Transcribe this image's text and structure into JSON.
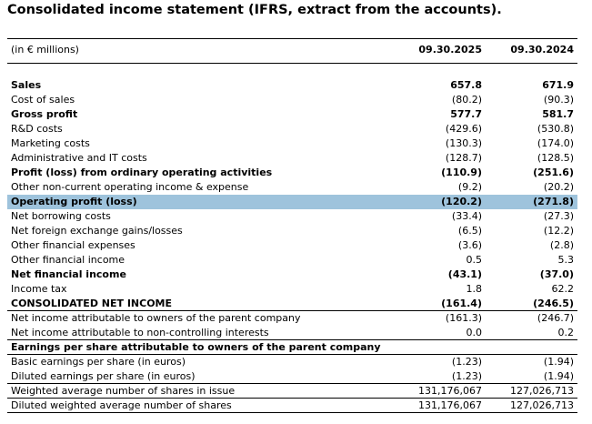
{
  "title": "Consolidated income statement (IFRS, extract from the accounts).",
  "header": {
    "unit": "(in € millions)",
    "col1": "09.30.2025",
    "col2": "09.30.2024"
  },
  "rows": [
    {
      "label": "Sales",
      "v1": "657.8",
      "v2": "671.9"
    },
    {
      "label": "Cost of sales",
      "v1": "(80.2)",
      "v2": "(90.3)"
    },
    {
      "label": "Gross profit",
      "v1": "577.7",
      "v2": "581.7"
    },
    {
      "label": "R&D costs",
      "v1": "(429.6)",
      "v2": "(530.8)"
    },
    {
      "label": "Marketing costs",
      "v1": "(130.3)",
      "v2": "(174.0)"
    },
    {
      "label": "Administrative and IT costs",
      "v1": "(128.7)",
      "v2": "(128.5)"
    },
    {
      "label": "Profit (loss) from ordinary operating activities",
      "v1": "(110.9)",
      "v2": "(251.6)"
    },
    {
      "label": "Other non-current operating income & expense",
      "v1": "(9.2)",
      "v2": "(20.2)"
    },
    {
      "label": "Operating profit (loss)",
      "v1": "(120.2)",
      "v2": "(271.8)"
    },
    {
      "label": "Net borrowing costs",
      "v1": "(33.4)",
      "v2": "(27.3)"
    },
    {
      "label": "Net foreign exchange gains/losses",
      "v1": "(6.5)",
      "v2": "(12.2)"
    },
    {
      "label": "Other financial expenses",
      "v1": "(3.6)",
      "v2": "(2.8)"
    },
    {
      "label": "Other financial income",
      "v1": "0.5",
      "v2": "5.3"
    },
    {
      "label": "Net financial income",
      "v1": "(43.1)",
      "v2": "(37.0)"
    },
    {
      "label": "Income tax",
      "v1": "1.8",
      "v2": "62.2"
    },
    {
      "label": "CONSOLIDATED NET INCOME",
      "v1": "(161.4)",
      "v2": "(246.5)"
    },
    {
      "label": "Net income attributable to owners of the parent company",
      "v1": "(161.3)",
      "v2": "(246.7)"
    },
    {
      "label": "Net income attributable to non-controlling interests",
      "v1": "0.0",
      "v2": "0.2"
    },
    {
      "label": "Earnings per share attributable to owners of the parent company",
      "v1": "",
      "v2": ""
    },
    {
      "label": "Basic earnings per share (in euros)",
      "v1": "(1.23)",
      "v2": "(1.94)"
    },
    {
      "label": "Diluted earnings per share (in euros)",
      "v1": "(1.23)",
      "v2": "(1.94)"
    },
    {
      "label": "Weighted average number of shares in issue",
      "v1": "131,176,067",
      "v2": "127,026,713"
    },
    {
      "label": "Diluted weighted average number of shares",
      "v1": "131,176,067",
      "v2": "127,026,713"
    }
  ]
}
